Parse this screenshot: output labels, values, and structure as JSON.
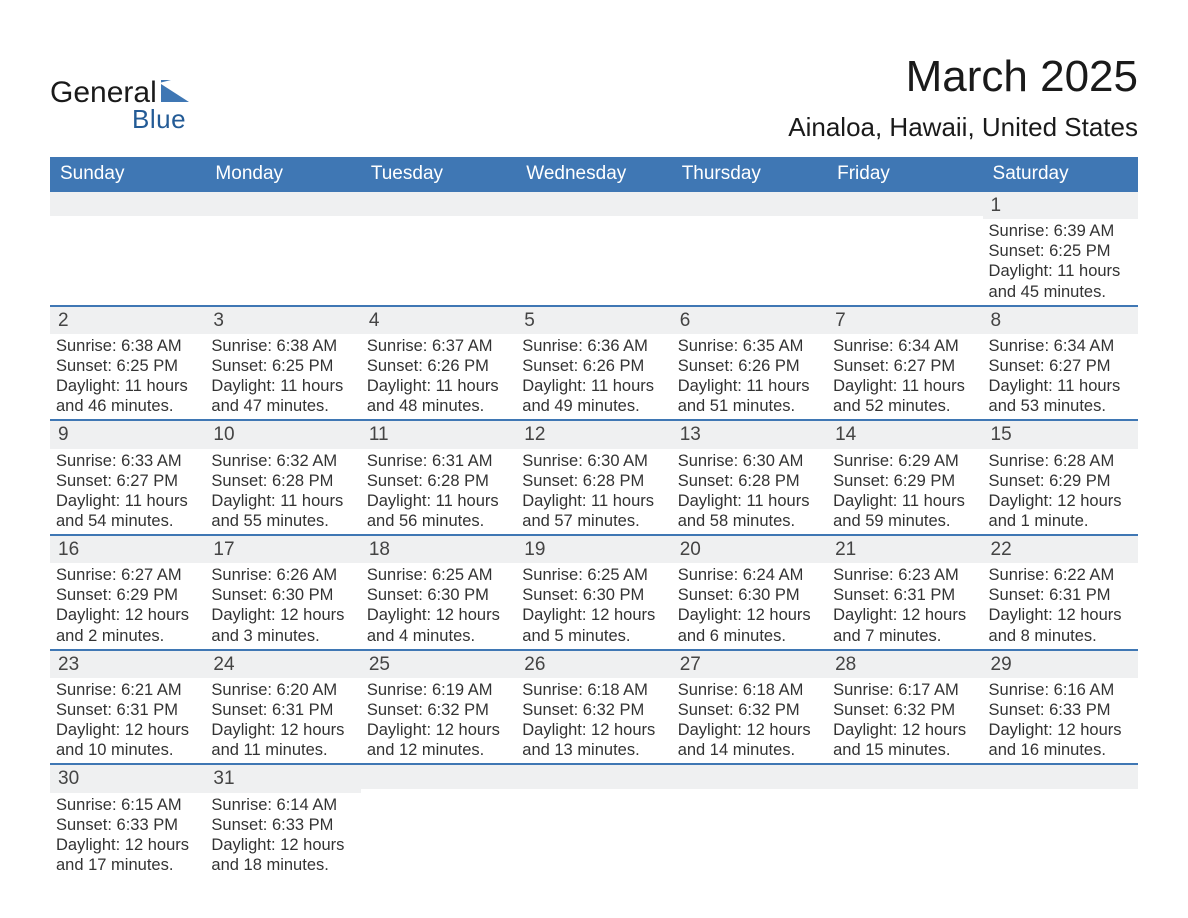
{
  "colors": {
    "header_bg": "#3f77b4",
    "divider": "#3f77b4",
    "daynum_bg": "#eff0f1",
    "text": "#333333",
    "page_bg": "#ffffff",
    "logo_blue": "#235b96"
  },
  "logo": {
    "word1": "General",
    "word2": "Blue"
  },
  "title": "March 2025",
  "location": "Ainaloa, Hawaii, United States",
  "day_names": [
    "Sunday",
    "Monday",
    "Tuesday",
    "Wednesday",
    "Thursday",
    "Friday",
    "Saturday"
  ],
  "weeks": [
    [
      {
        "blank": true
      },
      {
        "blank": true
      },
      {
        "blank": true
      },
      {
        "blank": true
      },
      {
        "blank": true
      },
      {
        "blank": true
      },
      {
        "n": "1",
        "sunrise": "Sunrise: 6:39 AM",
        "sunset": "Sunset: 6:25 PM",
        "day1": "Daylight: 11 hours",
        "day2": "and 45 minutes."
      }
    ],
    [
      {
        "n": "2",
        "sunrise": "Sunrise: 6:38 AM",
        "sunset": "Sunset: 6:25 PM",
        "day1": "Daylight: 11 hours",
        "day2": "and 46 minutes."
      },
      {
        "n": "3",
        "sunrise": "Sunrise: 6:38 AM",
        "sunset": "Sunset: 6:25 PM",
        "day1": "Daylight: 11 hours",
        "day2": "and 47 minutes."
      },
      {
        "n": "4",
        "sunrise": "Sunrise: 6:37 AM",
        "sunset": "Sunset: 6:26 PM",
        "day1": "Daylight: 11 hours",
        "day2": "and 48 minutes."
      },
      {
        "n": "5",
        "sunrise": "Sunrise: 6:36 AM",
        "sunset": "Sunset: 6:26 PM",
        "day1": "Daylight: 11 hours",
        "day2": "and 49 minutes."
      },
      {
        "n": "6",
        "sunrise": "Sunrise: 6:35 AM",
        "sunset": "Sunset: 6:26 PM",
        "day1": "Daylight: 11 hours",
        "day2": "and 51 minutes."
      },
      {
        "n": "7",
        "sunrise": "Sunrise: 6:34 AM",
        "sunset": "Sunset: 6:27 PM",
        "day1": "Daylight: 11 hours",
        "day2": "and 52 minutes."
      },
      {
        "n": "8",
        "sunrise": "Sunrise: 6:34 AM",
        "sunset": "Sunset: 6:27 PM",
        "day1": "Daylight: 11 hours",
        "day2": "and 53 minutes."
      }
    ],
    [
      {
        "n": "9",
        "sunrise": "Sunrise: 6:33 AM",
        "sunset": "Sunset: 6:27 PM",
        "day1": "Daylight: 11 hours",
        "day2": "and 54 minutes."
      },
      {
        "n": "10",
        "sunrise": "Sunrise: 6:32 AM",
        "sunset": "Sunset: 6:28 PM",
        "day1": "Daylight: 11 hours",
        "day2": "and 55 minutes."
      },
      {
        "n": "11",
        "sunrise": "Sunrise: 6:31 AM",
        "sunset": "Sunset: 6:28 PM",
        "day1": "Daylight: 11 hours",
        "day2": "and 56 minutes."
      },
      {
        "n": "12",
        "sunrise": "Sunrise: 6:30 AM",
        "sunset": "Sunset: 6:28 PM",
        "day1": "Daylight: 11 hours",
        "day2": "and 57 minutes."
      },
      {
        "n": "13",
        "sunrise": "Sunrise: 6:30 AM",
        "sunset": "Sunset: 6:28 PM",
        "day1": "Daylight: 11 hours",
        "day2": "and 58 minutes."
      },
      {
        "n": "14",
        "sunrise": "Sunrise: 6:29 AM",
        "sunset": "Sunset: 6:29 PM",
        "day1": "Daylight: 11 hours",
        "day2": "and 59 minutes."
      },
      {
        "n": "15",
        "sunrise": "Sunrise: 6:28 AM",
        "sunset": "Sunset: 6:29 PM",
        "day1": "Daylight: 12 hours",
        "day2": "and 1 minute."
      }
    ],
    [
      {
        "n": "16",
        "sunrise": "Sunrise: 6:27 AM",
        "sunset": "Sunset: 6:29 PM",
        "day1": "Daylight: 12 hours",
        "day2": "and 2 minutes."
      },
      {
        "n": "17",
        "sunrise": "Sunrise: 6:26 AM",
        "sunset": "Sunset: 6:30 PM",
        "day1": "Daylight: 12 hours",
        "day2": "and 3 minutes."
      },
      {
        "n": "18",
        "sunrise": "Sunrise: 6:25 AM",
        "sunset": "Sunset: 6:30 PM",
        "day1": "Daylight: 12 hours",
        "day2": "and 4 minutes."
      },
      {
        "n": "19",
        "sunrise": "Sunrise: 6:25 AM",
        "sunset": "Sunset: 6:30 PM",
        "day1": "Daylight: 12 hours",
        "day2": "and 5 minutes."
      },
      {
        "n": "20",
        "sunrise": "Sunrise: 6:24 AM",
        "sunset": "Sunset: 6:30 PM",
        "day1": "Daylight: 12 hours",
        "day2": "and 6 minutes."
      },
      {
        "n": "21",
        "sunrise": "Sunrise: 6:23 AM",
        "sunset": "Sunset: 6:31 PM",
        "day1": "Daylight: 12 hours",
        "day2": "and 7 minutes."
      },
      {
        "n": "22",
        "sunrise": "Sunrise: 6:22 AM",
        "sunset": "Sunset: 6:31 PM",
        "day1": "Daylight: 12 hours",
        "day2": "and 8 minutes."
      }
    ],
    [
      {
        "n": "23",
        "sunrise": "Sunrise: 6:21 AM",
        "sunset": "Sunset: 6:31 PM",
        "day1": "Daylight: 12 hours",
        "day2": "and 10 minutes."
      },
      {
        "n": "24",
        "sunrise": "Sunrise: 6:20 AM",
        "sunset": "Sunset: 6:31 PM",
        "day1": "Daylight: 12 hours",
        "day2": "and 11 minutes."
      },
      {
        "n": "25",
        "sunrise": "Sunrise: 6:19 AM",
        "sunset": "Sunset: 6:32 PM",
        "day1": "Daylight: 12 hours",
        "day2": "and 12 minutes."
      },
      {
        "n": "26",
        "sunrise": "Sunrise: 6:18 AM",
        "sunset": "Sunset: 6:32 PM",
        "day1": "Daylight: 12 hours",
        "day2": "and 13 minutes."
      },
      {
        "n": "27",
        "sunrise": "Sunrise: 6:18 AM",
        "sunset": "Sunset: 6:32 PM",
        "day1": "Daylight: 12 hours",
        "day2": "and 14 minutes."
      },
      {
        "n": "28",
        "sunrise": "Sunrise: 6:17 AM",
        "sunset": "Sunset: 6:32 PM",
        "day1": "Daylight: 12 hours",
        "day2": "and 15 minutes."
      },
      {
        "n": "29",
        "sunrise": "Sunrise: 6:16 AM",
        "sunset": "Sunset: 6:33 PM",
        "day1": "Daylight: 12 hours",
        "day2": "and 16 minutes."
      }
    ],
    [
      {
        "n": "30",
        "sunrise": "Sunrise: 6:15 AM",
        "sunset": "Sunset: 6:33 PM",
        "day1": "Daylight: 12 hours",
        "day2": "and 17 minutes."
      },
      {
        "n": "31",
        "sunrise": "Sunrise: 6:14 AM",
        "sunset": "Sunset: 6:33 PM",
        "day1": "Daylight: 12 hours",
        "day2": "and 18 minutes."
      },
      {
        "blank": true
      },
      {
        "blank": true
      },
      {
        "blank": true
      },
      {
        "blank": true
      },
      {
        "blank": true
      }
    ]
  ]
}
